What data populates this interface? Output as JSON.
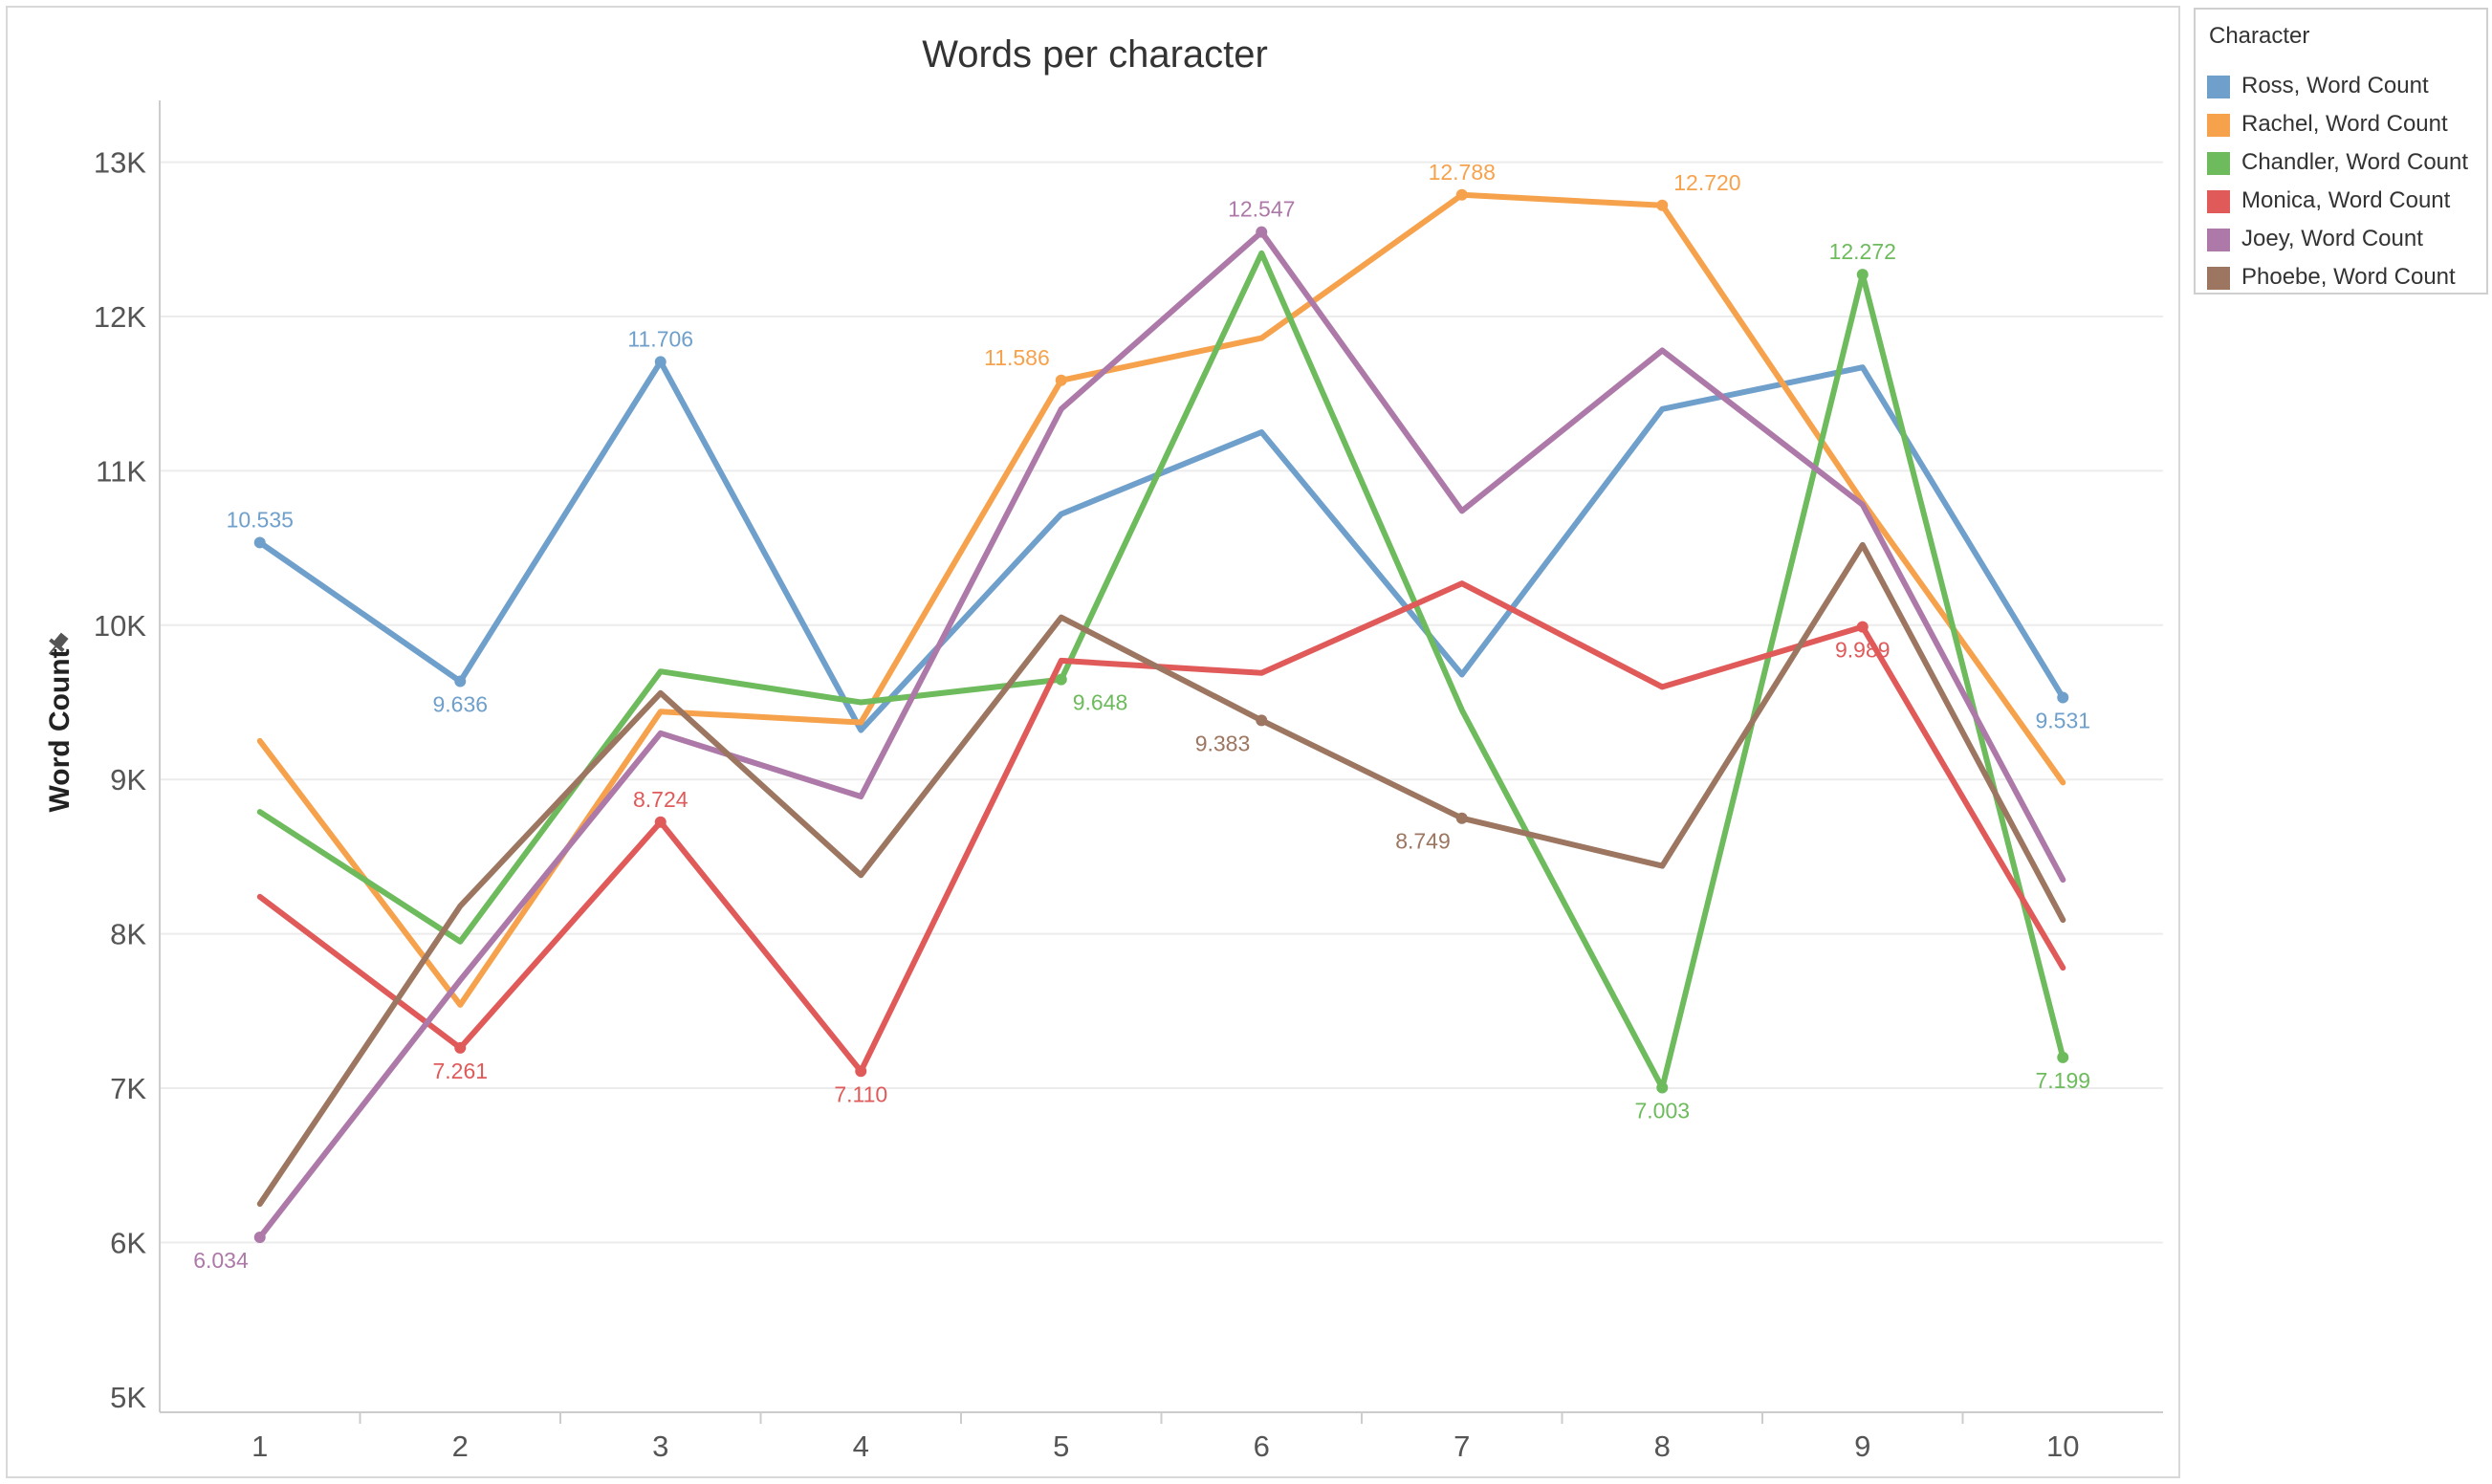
{
  "chart_data": {
    "type": "line",
    "title": "Words per character",
    "xlabel": "",
    "ylabel": "Word Count",
    "x": [
      1,
      2,
      3,
      4,
      5,
      6,
      7,
      8,
      9,
      10
    ],
    "xlim": [
      0.5,
      10.5
    ],
    "ylim": [
      4900,
      13400
    ],
    "y_ticks": [
      5000,
      6000,
      7000,
      8000,
      9000,
      10000,
      11000,
      12000,
      13000
    ],
    "y_tick_labels": [
      "5K",
      "6K",
      "7K",
      "8K",
      "9K",
      "10K",
      "11K",
      "12K",
      "13K"
    ],
    "grid": true,
    "legend_title": "Character",
    "legend_position": "right",
    "series": [
      {
        "name": "Ross, Word Count",
        "color": "#6f9fcb",
        "values": [
          10535,
          9636,
          11706,
          9320,
          10720,
          11250,
          9680,
          11400,
          11670,
          9531
        ],
        "labels": [
          {
            "i": 0,
            "text": "10.535",
            "pos": "above"
          },
          {
            "i": 1,
            "text": "9.636",
            "pos": "below"
          },
          {
            "i": 2,
            "text": "11.706",
            "pos": "above"
          },
          {
            "i": 9,
            "text": "9.531",
            "pos": "below"
          }
        ]
      },
      {
        "name": "Rachel, Word Count",
        "color": "#f6a24c",
        "values": [
          9250,
          7540,
          9440,
          9370,
          11586,
          11860,
          12788,
          12720,
          10800,
          8980
        ],
        "labels": [
          {
            "i": 4,
            "text": "11.586",
            "pos": "above-left"
          },
          {
            "i": 6,
            "text": "12.788",
            "pos": "above"
          },
          {
            "i": 7,
            "text": "12.720",
            "pos": "above-right"
          }
        ]
      },
      {
        "name": "Chandler, Word Count",
        "color": "#6dbb5c",
        "values": [
          8790,
          7950,
          9700,
          9500,
          9648,
          12410,
          9450,
          7003,
          12272,
          7199
        ],
        "labels": [
          {
            "i": 4,
            "text": "9.648",
            "pos": "below-right"
          },
          {
            "i": 7,
            "text": "7.003",
            "pos": "below"
          },
          {
            "i": 8,
            "text": "12.272",
            "pos": "above"
          },
          {
            "i": 9,
            "text": "7.199",
            "pos": "below"
          }
        ]
      },
      {
        "name": "Monica, Word Count",
        "color": "#e05a5a",
        "values": [
          8240,
          7261,
          8724,
          7110,
          9770,
          9690,
          10270,
          9600,
          9989,
          7780
        ],
        "labels": [
          {
            "i": 1,
            "text": "7.261",
            "pos": "below"
          },
          {
            "i": 2,
            "text": "8.724",
            "pos": "above"
          },
          {
            "i": 3,
            "text": "7.110",
            "pos": "below"
          },
          {
            "i": 8,
            "text": "9.989",
            "pos": "below"
          }
        ]
      },
      {
        "name": "Joey, Word Count",
        "color": "#ad79a8",
        "values": [
          6034,
          7700,
          9300,
          8890,
          11400,
          12547,
          10740,
          11780,
          10780,
          8350
        ],
        "labels": [
          {
            "i": 0,
            "text": "6.034",
            "pos": "below-left"
          },
          {
            "i": 5,
            "text": "12.547",
            "pos": "above"
          }
        ]
      },
      {
        "name": "Phoebe, Word Count",
        "color": "#9c7660",
        "values": [
          6250,
          8180,
          9560,
          8380,
          10050,
          9383,
          8749,
          8440,
          10520,
          8090
        ],
        "labels": [
          {
            "i": 5,
            "text": "9.383",
            "pos": "below-left"
          },
          {
            "i": 6,
            "text": "8.749",
            "pos": "below-left"
          }
        ]
      }
    ]
  }
}
